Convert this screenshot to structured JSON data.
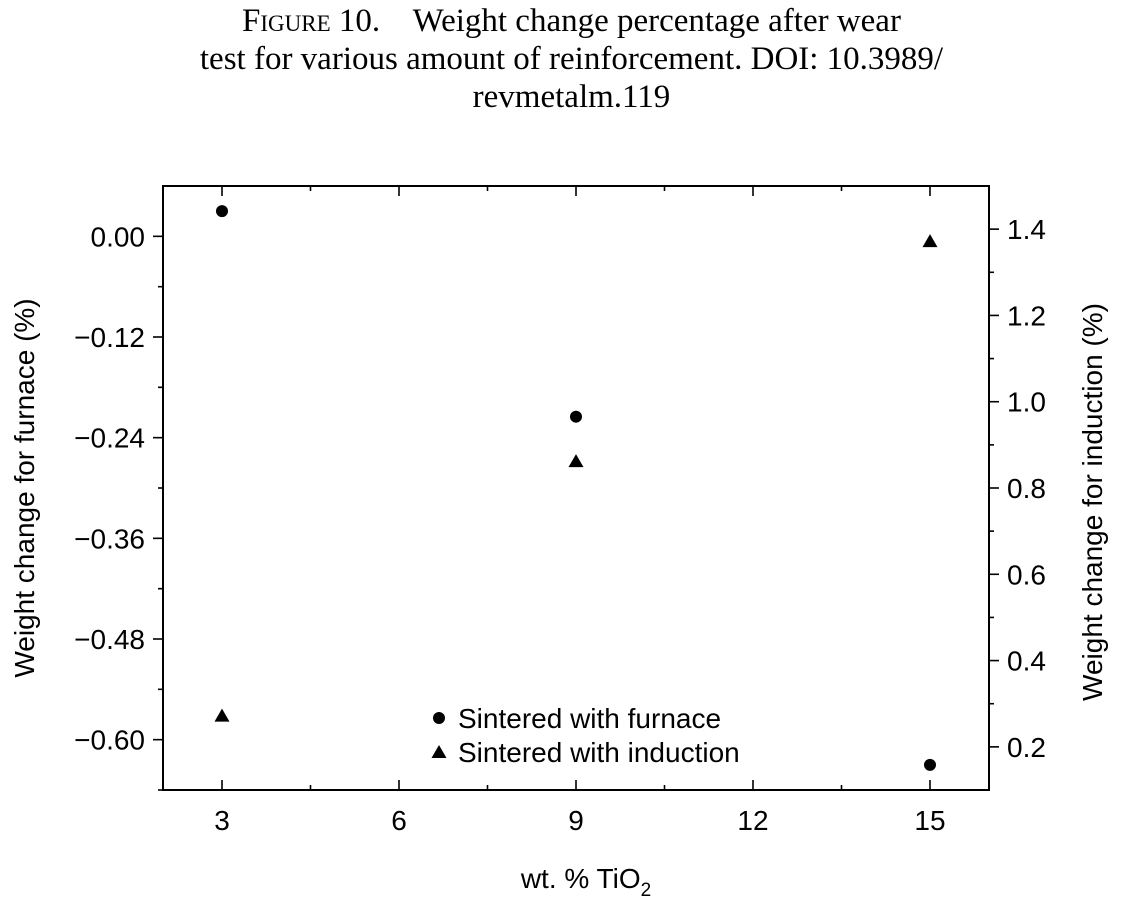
{
  "caption": {
    "label": "Figure 10.",
    "line1": "Weight change percentage after wear",
    "line2": "test for various amount of reinforcement. DOI: 10.3989/",
    "line3": "revmetalm.119"
  },
  "chart_data": {
    "type": "scatter",
    "title": "",
    "xlabel": "wt. % TiO",
    "xlabel_sub": "2",
    "ylabel_left": "Weight change for furnace (%)",
    "ylabel_right": "Weight change for induction (%)",
    "x_ticks": [
      "3",
      "6",
      "9",
      "12",
      "15"
    ],
    "y_left_ticks": [
      "0.00",
      "−0.12",
      "−0.24",
      "−0.36",
      "−0.48",
      "−0.60"
    ],
    "y_right_ticks": [
      "1.4",
      "1.2",
      "1.0",
      "0.8",
      "0.6",
      "0.4",
      "0.2"
    ],
    "xlim": [
      2,
      16
    ],
    "ylim_left": [
      -0.66,
      0.06
    ],
    "ylim_right": [
      0.1,
      1.5
    ],
    "legend_position": "bottom-center",
    "series": [
      {
        "name": "Sintered with furnace",
        "marker": "circle",
        "axis": "left",
        "x": [
          3,
          9,
          15
        ],
        "y": [
          0.03,
          -0.215,
          -0.63
        ]
      },
      {
        "name": "Sintered with induction",
        "marker": "triangle",
        "axis": "right",
        "x": [
          3,
          9,
          15
        ],
        "y": [
          0.27,
          0.86,
          1.37
        ]
      }
    ],
    "colors": {
      "marker": "#000000",
      "axis": "#000000"
    }
  }
}
